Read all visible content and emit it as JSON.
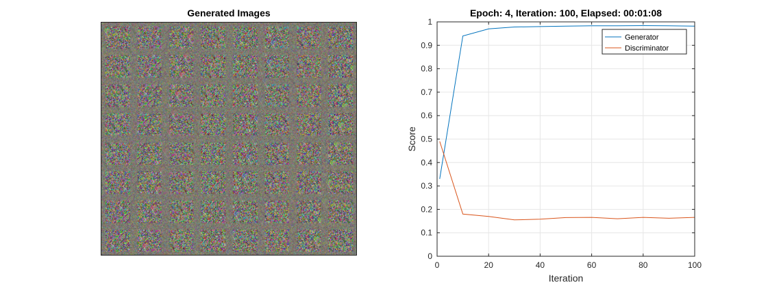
{
  "left_panel": {
    "title": "Generated Images",
    "grid_rows": 8,
    "grid_cols": 8
  },
  "chart_data": {
    "type": "line",
    "title": "Epoch: 4, Iteration: 100, Elapsed: 00:01:08",
    "xlabel": "Iteration",
    "ylabel": "Score",
    "xlim": [
      0,
      100
    ],
    "ylim": [
      0,
      1
    ],
    "xticks": [
      0,
      20,
      40,
      60,
      80,
      100
    ],
    "yticks": [
      0,
      0.1,
      0.2,
      0.3,
      0.4,
      0.5,
      0.6,
      0.7,
      0.8,
      0.9,
      1
    ],
    "grid": true,
    "legend_position": "top-right",
    "series": [
      {
        "name": "Generator",
        "color": "#0072BD",
        "x": [
          1,
          10,
          20,
          30,
          40,
          50,
          60,
          70,
          80,
          90,
          100
        ],
        "y": [
          0.33,
          0.94,
          0.97,
          0.978,
          0.98,
          0.982,
          0.983,
          0.983,
          0.984,
          0.983,
          0.982
        ]
      },
      {
        "name": "Discriminator",
        "color": "#D95319",
        "x": [
          1,
          10,
          20,
          30,
          40,
          50,
          60,
          70,
          80,
          90,
          100
        ],
        "y": [
          0.49,
          0.18,
          0.17,
          0.155,
          0.158,
          0.165,
          0.166,
          0.16,
          0.166,
          0.162,
          0.166
        ]
      }
    ]
  }
}
